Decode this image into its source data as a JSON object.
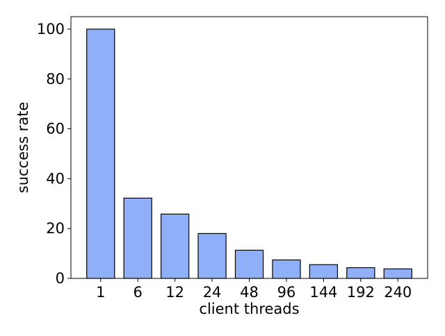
{
  "chart_data": {
    "type": "bar",
    "title": "",
    "xlabel": "client threads",
    "ylabel": "success rate",
    "categories": [
      "1",
      "6",
      "12",
      "24",
      "48",
      "96",
      "144",
      "192",
      "240"
    ],
    "values": [
      100,
      32.2,
      25.8,
      18.0,
      11.3,
      7.4,
      5.5,
      4.3,
      3.8
    ],
    "ylim": [
      0,
      105
    ],
    "yticks": [
      0,
      20,
      40,
      60,
      80,
      100
    ],
    "grid": false,
    "legend": "none",
    "bar_color": "#8fb0f8",
    "bar_edge_color": "#000000"
  }
}
